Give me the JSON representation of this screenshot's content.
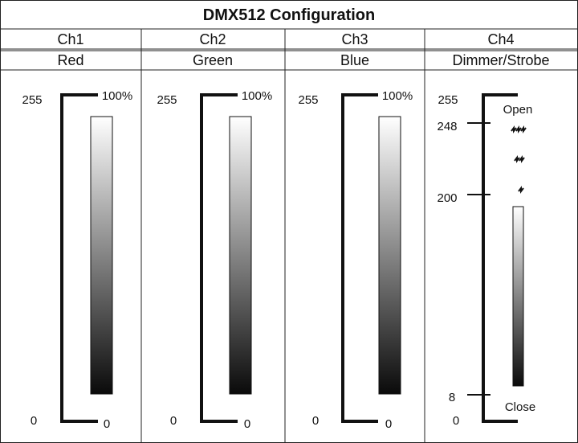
{
  "header": {
    "title": "DMX512 Configuration"
  },
  "channels": [
    {
      "channel": "Ch1",
      "function": "Red",
      "scale_top": "255",
      "scale_bottom": "0",
      "bracket_top": "100%",
      "bracket_bottom": "0"
    },
    {
      "channel": "Ch2",
      "function": "Green",
      "scale_top": "255",
      "scale_bottom": "0",
      "bracket_top": "100%",
      "bracket_bottom": "0"
    },
    {
      "channel": "Ch3",
      "function": "Blue",
      "scale_top": "255",
      "scale_bottom": "0",
      "bracket_top": "100%",
      "bracket_bottom": "0"
    },
    {
      "channel": "Ch4",
      "function": "Dimmer/Strobe",
      "scale": [
        "255",
        "248",
        "200",
        "8",
        "0"
      ],
      "top_label": "Open",
      "bottom_label": "Close"
    }
  ]
}
